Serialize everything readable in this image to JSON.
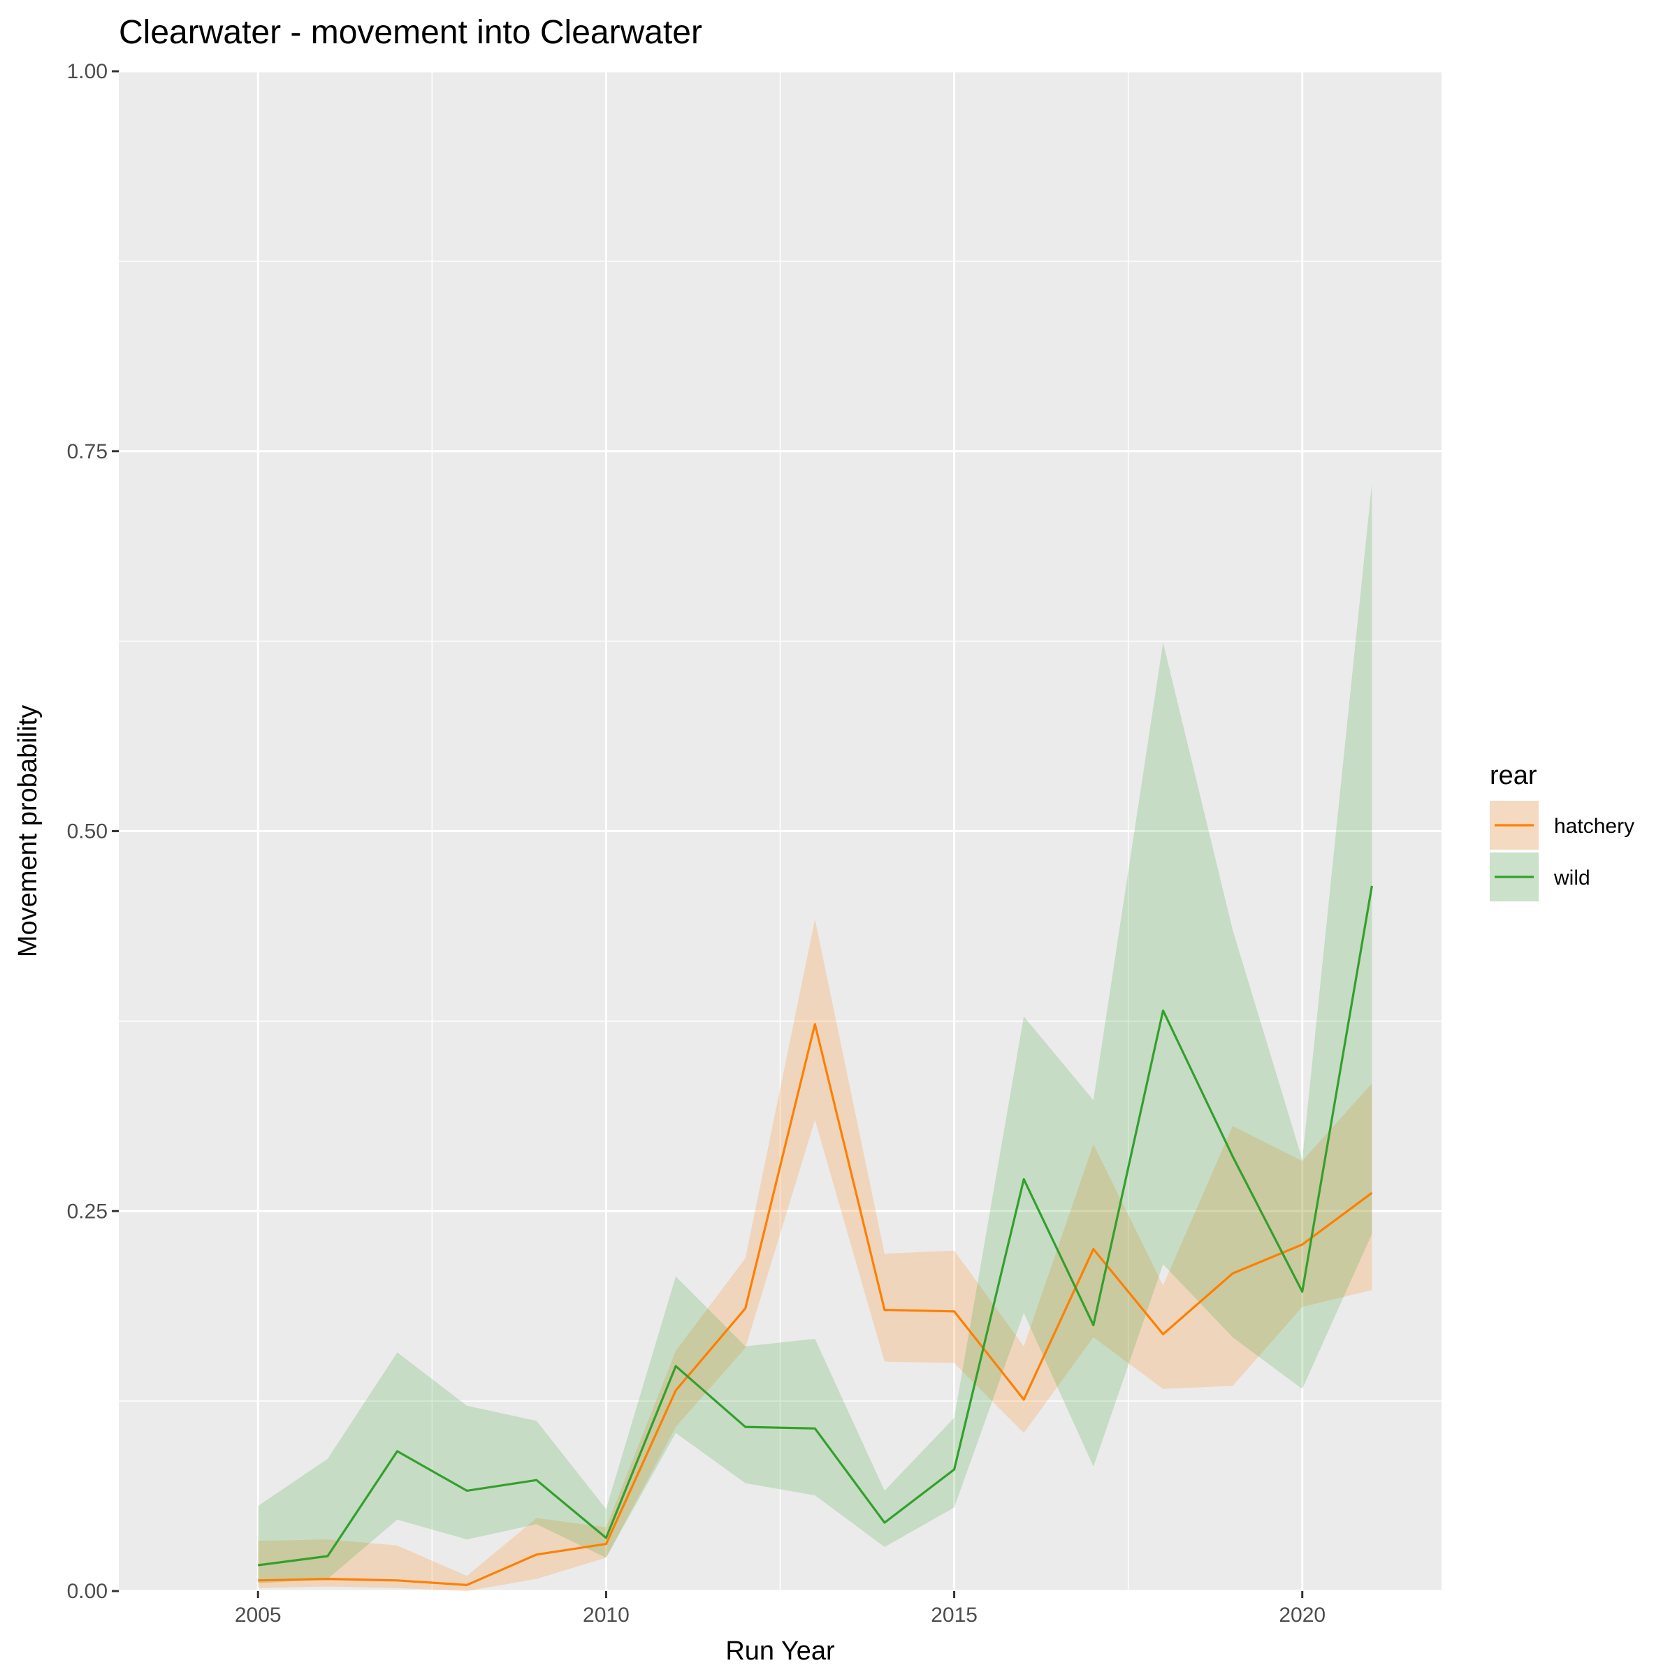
{
  "chart_data": {
    "type": "line",
    "title": "Clearwater - movement into Clearwater",
    "xlabel": "Run Year",
    "ylabel": "Movement probability",
    "xlim": [
      2003,
      2022
    ],
    "ylim": [
      0,
      1
    ],
    "x_ticks": [
      2005,
      2010,
      2015,
      2020
    ],
    "x_tick_labels": [
      "2005",
      "2010",
      "2015",
      "2020"
    ],
    "y_ticks": [
      0,
      0.25,
      0.5,
      0.75,
      1
    ],
    "y_tick_labels": [
      "0.00",
      "0.25",
      "0.50",
      "0.75",
      "1.00"
    ],
    "grid": true,
    "panel_background": "#ebebeb",
    "legend": {
      "title": "rear",
      "position": "right"
    },
    "x": [
      2005,
      2006,
      2007,
      2008,
      2009,
      2010,
      2011,
      2012,
      2013,
      2014,
      2015,
      2016,
      2017,
      2018,
      2019,
      2020,
      2021
    ],
    "series": [
      {
        "name": "hatchery",
        "color": "#ff7f00",
        "values": [
          0.007,
          0.008,
          0.007,
          0.004,
          0.024,
          0.031,
          0.132,
          0.186,
          0.373,
          0.185,
          0.184,
          0.126,
          0.225,
          0.169,
          0.209,
          0.228,
          0.262
        ],
        "lower": [
          0.002,
          0.003,
          0.002,
          0.0,
          0.008,
          0.022,
          0.108,
          0.16,
          0.31,
          0.151,
          0.15,
          0.104,
          0.167,
          0.133,
          0.135,
          0.187,
          0.198
        ],
        "upper": [
          0.033,
          0.034,
          0.03,
          0.01,
          0.048,
          0.042,
          0.158,
          0.219,
          0.442,
          0.222,
          0.224,
          0.161,
          0.294,
          0.201,
          0.306,
          0.283,
          0.334
        ]
      },
      {
        "name": "wild",
        "color": "#33a02c",
        "values": [
          0.017,
          0.023,
          0.092,
          0.066,
          0.073,
          0.035,
          0.148,
          0.108,
          0.107,
          0.045,
          0.08,
          0.271,
          0.175,
          0.382,
          0.286,
          0.197,
          0.464
        ],
        "lower": [
          0.005,
          0.008,
          0.047,
          0.034,
          0.044,
          0.022,
          0.104,
          0.071,
          0.063,
          0.029,
          0.055,
          0.183,
          0.082,
          0.215,
          0.167,
          0.133,
          0.235
        ],
        "upper": [
          0.056,
          0.087,
          0.157,
          0.122,
          0.112,
          0.054,
          0.207,
          0.161,
          0.166,
          0.066,
          0.114,
          0.378,
          0.323,
          0.624,
          0.435,
          0.284,
          0.729
        ]
      }
    ]
  }
}
